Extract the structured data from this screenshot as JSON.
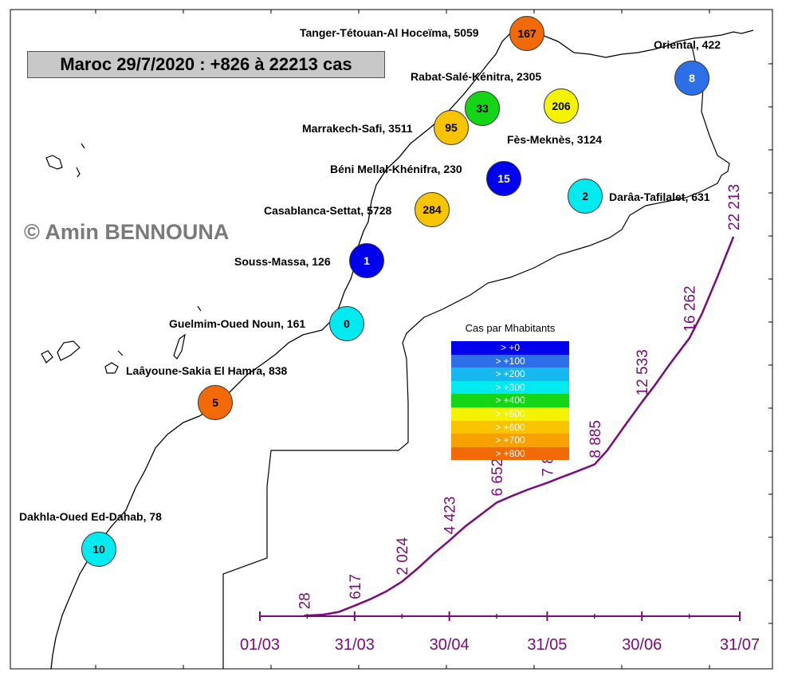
{
  "title": "Maroc 29/7/2020 : +826 à 22213 cas",
  "copyright": "© Amin BENNOUNA",
  "colors": {
    "coast": "#000000",
    "curve": "#7b0b7b",
    "title_bg": "#c8c8c8"
  },
  "legend": {
    "title": "Cas par Mhabitants",
    "items": [
      {
        "label": "> +0",
        "color": "#0000ee"
      },
      {
        "label": "> +100",
        "color": "#2d6fe6"
      },
      {
        "label": "> +200",
        "color": "#17b8ef"
      },
      {
        "label": "> +300",
        "color": "#00eaf0"
      },
      {
        "label": "> +400",
        "color": "#14d617"
      },
      {
        "label": "> +500",
        "color": "#f3f300"
      },
      {
        "label": "> +600",
        "color": "#f8c400"
      },
      {
        "label": "> +700",
        "color": "#f7a100"
      },
      {
        "label": "> +800",
        "color": "#f16a06"
      }
    ]
  },
  "regions": [
    {
      "name": "Tanger-Tétouan-Al Hoceïma, 5059",
      "value": "167",
      "color": "#f16a06"
    },
    {
      "name": "Oriental, 422",
      "value": "8",
      "color": "#2d6fe6"
    },
    {
      "name": "Rabat-Salé-Kénitra, 2305",
      "value": "33",
      "color": "#14d617"
    },
    {
      "name": "Fès-Meknès, 3124",
      "value": "206",
      "color": "#f3f300"
    },
    {
      "name": "Marrakech-Safi, 3511",
      "value": "95",
      "color": "#f8c400"
    },
    {
      "name": "Béni Mellal-Khénifra, 230",
      "value": "15",
      "color": "#0000ee"
    },
    {
      "name": "Darâa-Tafilalet, 631",
      "value": "2",
      "color": "#00eaf0"
    },
    {
      "name": "Casablanca-Settat, 5728",
      "value": "284",
      "color": "#f8c400"
    },
    {
      "name": "Souss-Massa, 126",
      "value": "1",
      "color": "#0000ee"
    },
    {
      "name": "Guelmim-Oued Noun, 161",
      "value": "0",
      "color": "#00eaf0"
    },
    {
      "name": "Laâyoune-Sakia El Hamra, 838",
      "value": "5",
      "color": "#f16a06"
    },
    {
      "name": "Dakhla-Oued Ed-Dahab, 78",
      "value": "10",
      "color": "#00eaf0"
    }
  ],
  "chart_data": {
    "type": "line",
    "x_ticks": [
      "01/03",
      "31/03",
      "30/04",
      "31/05",
      "30/06",
      "31/07"
    ],
    "x_tick_days": [
      0,
      30,
      60,
      91,
      121,
      152
    ],
    "ylim": [
      0,
      22213
    ],
    "annotations": [
      {
        "day": 14,
        "value": 28,
        "text": "28"
      },
      {
        "day": 30,
        "value": 617,
        "text": "617"
      },
      {
        "day": 45,
        "value": 2024,
        "text": "2 024"
      },
      {
        "day": 60,
        "value": 4423,
        "text": "4 423"
      },
      {
        "day": 75,
        "value": 6652,
        "text": "6 652"
      },
      {
        "day": 91,
        "value": 7807,
        "text": "7 807"
      },
      {
        "day": 106,
        "value": 8885,
        "text": "8 885"
      },
      {
        "day": 121,
        "value": 12533,
        "text": "12 533"
      },
      {
        "day": 136,
        "value": 16262,
        "text": "16 262"
      },
      {
        "day": 150,
        "value": 22213,
        "text": "22 213"
      }
    ],
    "series": [
      {
        "x": [
          14,
          20,
          25,
          30,
          35,
          40,
          45,
          50,
          55,
          60,
          65,
          70,
          75,
          80,
          85,
          91,
          95,
          100,
          106,
          110,
          115,
          121,
          125,
          130,
          136,
          140,
          145,
          150
        ],
        "y": [
          28,
          90,
          250,
          617,
          1000,
          1450,
          2024,
          2800,
          3650,
          4423,
          5250,
          5950,
          6652,
          7050,
          7420,
          7807,
          8100,
          8450,
          8885,
          9700,
          11000,
          12533,
          13500,
          14800,
          16262,
          17700,
          19900,
          22213
        ]
      }
    ]
  }
}
